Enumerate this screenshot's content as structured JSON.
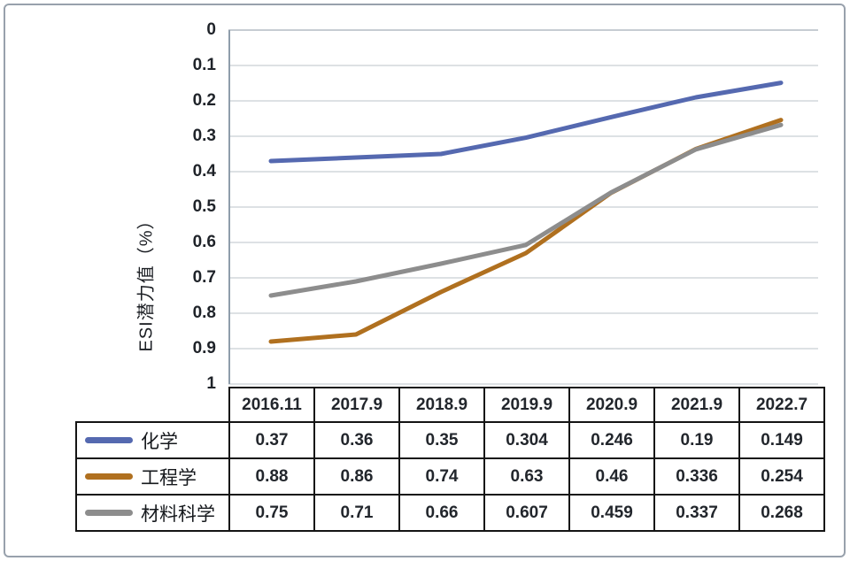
{
  "chart_data": {
    "type": "line",
    "title": "",
    "xlabel": "",
    "ylabel": "ESI潜力值（%）",
    "x_categories": [
      "2016.11",
      "2017.9",
      "2018.9",
      "2019.9",
      "2020.9",
      "2021.9",
      "2022.7"
    ],
    "y_ticks": [
      "0",
      "0.1",
      "0.2",
      "0.3",
      "0.4",
      "0.5",
      "0.6",
      "0.7",
      "0.8",
      "0.9",
      "1"
    ],
    "ylim": [
      0,
      1
    ],
    "y_axis_inverted": true,
    "grid": true,
    "legend_position": "table-left-column",
    "series": [
      {
        "name": "化学",
        "color": "#5569b0",
        "values": [
          0.37,
          0.36,
          0.35,
          0.304,
          0.246,
          0.19,
          0.149
        ]
      },
      {
        "name": "工程学",
        "color": "#b0701f",
        "values": [
          0.88,
          0.86,
          0.74,
          0.63,
          0.46,
          0.336,
          0.254
        ]
      },
      {
        "name": "材料科学",
        "color": "#8d8d8d",
        "values": [
          0.75,
          0.71,
          0.66,
          0.607,
          0.459,
          0.337,
          0.268
        ]
      }
    ],
    "colors": {
      "gridline": "#d2d7db",
      "top_gridline": "#b4bcc4",
      "axis_line": "#8f9dab",
      "card_border": "#98a1ac",
      "table_border": "#141414"
    }
  }
}
